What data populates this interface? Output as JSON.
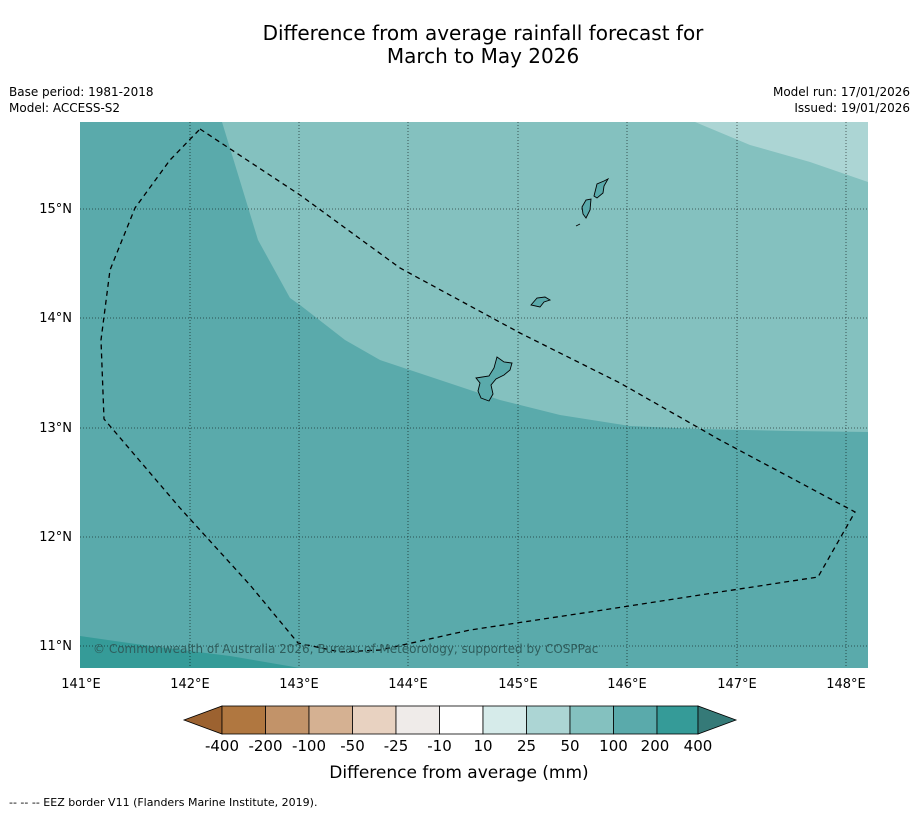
{
  "title": {
    "line1": "Difference from average rainfall forecast for",
    "line2": "March to May 2026"
  },
  "meta": {
    "base_period": "Base period: 1981-2018",
    "model": "Model: ACCESS-S2",
    "model_run": "Model run: 17/01/2026",
    "issued": "Issued: 19/01/2026"
  },
  "map": {
    "lat_labels": [
      "15°N",
      "14°N",
      "13°N",
      "12°N",
      "11°N"
    ],
    "lon_labels": [
      "141°E",
      "142°E",
      "143°E",
      "144°E",
      "145°E",
      "146°E",
      "147°E",
      "148°E"
    ],
    "copyright": "© Commonwealth of Australia 2026, Bureau of Meteorology, supported by COSPPac",
    "colors": {
      "band_50_100": "#84c1bf",
      "band_25_50": "#acd5d4",
      "band_100_200": "#5aaaab",
      "band_200_400": "#359b98"
    }
  },
  "legend": {
    "tick_labels": [
      "-400",
      "-200",
      "-100",
      "-50",
      "-25",
      "-10",
      "10",
      "25",
      "50",
      "100",
      "200",
      "400"
    ],
    "colors": [
      "#9c6230",
      "#b07740",
      "#c29369",
      "#d5b192",
      "#e8d2c1",
      "#efebe9",
      "#ffffff",
      "#d6ebea",
      "#acd5d4",
      "#84c1bf",
      "#5aaaab",
      "#359b98",
      "#357a78"
    ],
    "title": "Difference from average (mm)"
  },
  "footer": {
    "eez_note": "-- -- -- EEZ border V11 (Flanders Marine Institute, 2019)."
  }
}
